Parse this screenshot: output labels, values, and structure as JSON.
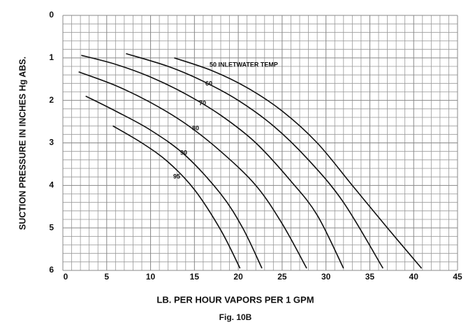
{
  "chart_data": {
    "type": "line",
    "caption": "Fig. 10B",
    "x_label": "LB. PER HOUR VAPORS PER 1 GPM",
    "y_label": "SUCTION PRESSURE IN INCHES Hg ABS.",
    "xlim": [
      0,
      45
    ],
    "xticks": [
      0,
      5,
      10,
      15,
      20,
      25,
      30,
      35,
      40,
      45
    ],
    "ylim": [
      6,
      0
    ],
    "yticks": [
      0,
      1,
      2,
      3,
      4,
      5,
      6
    ],
    "grid": true,
    "series": [
      {
        "name": "50 INLETWATER TEMP",
        "color": "#111111",
        "x": [
          12.7,
          17,
          21,
          25,
          29,
          33,
          37,
          40.9
        ],
        "values": [
          1.0,
          1.3,
          1.7,
          2.25,
          3.0,
          4.0,
          5.0,
          5.95
        ]
      },
      {
        "name": "60",
        "color": "#111111",
        "x": [
          7.2,
          12,
          16,
          20,
          24,
          28,
          32,
          36.5
        ],
        "values": [
          0.9,
          1.2,
          1.55,
          2.0,
          2.6,
          3.4,
          4.4,
          5.95
        ]
      },
      {
        "name": "70",
        "color": "#111111",
        "x": [
          2.1,
          6,
          10,
          14,
          18,
          22,
          26,
          29,
          32
        ],
        "values": [
          0.94,
          1.15,
          1.45,
          1.85,
          2.35,
          3.0,
          3.9,
          4.7,
          5.95
        ]
      },
      {
        "name": "80",
        "color": "#111111",
        "x": [
          1.8,
          6,
          10,
          14,
          18,
          22,
          25,
          27.8
        ],
        "values": [
          1.33,
          1.65,
          2.05,
          2.55,
          3.2,
          4.0,
          4.9,
          5.95
        ]
      },
      {
        "name": "90",
        "color": "#111111",
        "x": [
          2.6,
          6,
          10,
          14,
          18,
          20.5,
          22.7
        ],
        "values": [
          1.9,
          2.25,
          2.7,
          3.3,
          4.2,
          5.0,
          5.95
        ]
      },
      {
        "name": "95",
        "color": "#111111",
        "x": [
          5.7,
          9,
          12,
          15,
          18,
          20.2
        ],
        "values": [
          2.6,
          3.0,
          3.45,
          4.1,
          5.05,
          5.95
        ]
      }
    ]
  }
}
